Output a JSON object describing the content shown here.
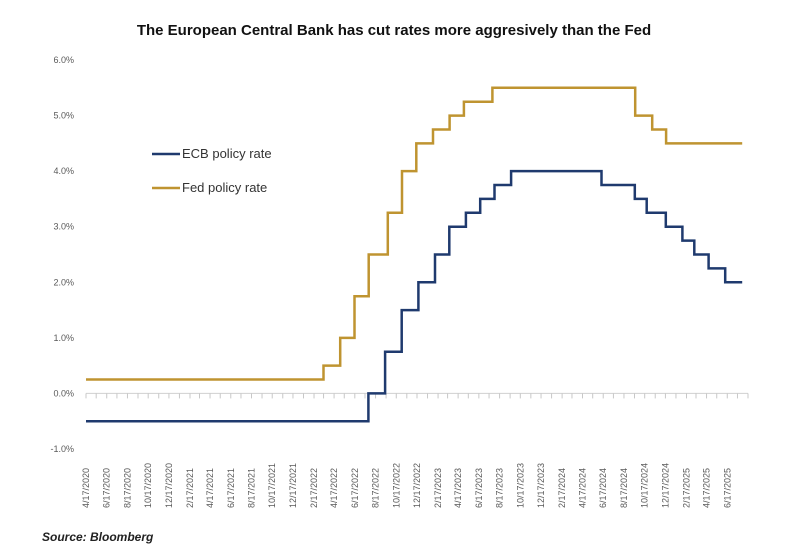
{
  "chart_data": {
    "type": "line",
    "step": true,
    "title": "The European Central Bank has cut rates more aggresively than the Fed",
    "source": "Source: Bloomberg",
    "ylim": [
      -1.0,
      6.0
    ],
    "yticks": [
      "-1.0%",
      "0.0%",
      "1.0%",
      "2.0%",
      "3.0%",
      "4.0%",
      "5.0%",
      "6.0%"
    ],
    "yticks_values": [
      -1.0,
      0.0,
      1.0,
      2.0,
      3.0,
      4.0,
      5.0,
      6.0
    ],
    "xlim": [
      "2020-04-17",
      "2025-08-17"
    ],
    "xticks": [
      "4/17/2020",
      "6/17/2020",
      "8/17/2020",
      "10/17/2020",
      "12/17/2020",
      "2/17/2021",
      "4/17/2021",
      "6/17/2021",
      "8/17/2021",
      "10/17/2021",
      "12/17/2021",
      "2/17/2022",
      "4/17/2022",
      "6/17/2022",
      "8/17/2022",
      "10/17/2022",
      "12/17/2022",
      "2/17/2023",
      "4/17/2023",
      "6/17/2023",
      "8/17/2023",
      "10/17/2023",
      "12/17/2023",
      "2/17/2024",
      "4/17/2024",
      "6/17/2024",
      "8/17/2024",
      "10/17/2024",
      "12/17/2024",
      "2/17/2025",
      "4/17/2025",
      "6/17/2025"
    ],
    "grid": false,
    "legend_position": "left",
    "series": [
      {
        "name": "ECB policy rate",
        "color": "#1f3a6e",
        "x": [
          "2020-04-17",
          "2022-07-27",
          "2022-09-14",
          "2022-11-02",
          "2022-12-21",
          "2023-02-08",
          "2023-03-22",
          "2023-05-10",
          "2023-06-21",
          "2023-08-02",
          "2023-09-20",
          "2024-06-12",
          "2024-09-18",
          "2024-10-23",
          "2024-12-18",
          "2025-02-05",
          "2025-03-12",
          "2025-04-23",
          "2025-06-11",
          "2025-07-31"
        ],
        "values": [
          -0.5,
          0.0,
          0.75,
          1.5,
          2.0,
          2.5,
          3.0,
          3.25,
          3.5,
          3.75,
          4.0,
          3.75,
          3.5,
          3.25,
          3.0,
          2.75,
          2.5,
          2.25,
          2.0,
          2.0
        ]
      },
      {
        "name": "Fed policy rate",
        "color": "#bf9430",
        "x": [
          "2020-04-17",
          "2022-03-17",
          "2022-05-05",
          "2022-06-16",
          "2022-07-28",
          "2022-09-22",
          "2022-11-03",
          "2022-12-15",
          "2023-02-02",
          "2023-03-23",
          "2023-05-04",
          "2023-07-27",
          "2024-09-19",
          "2024-11-08",
          "2024-12-19",
          "2025-07-31"
        ],
        "values": [
          0.25,
          0.5,
          1.0,
          1.75,
          2.5,
          3.25,
          4.0,
          4.5,
          4.75,
          5.0,
          5.25,
          5.5,
          5.0,
          4.75,
          4.5,
          4.5
        ]
      }
    ]
  }
}
